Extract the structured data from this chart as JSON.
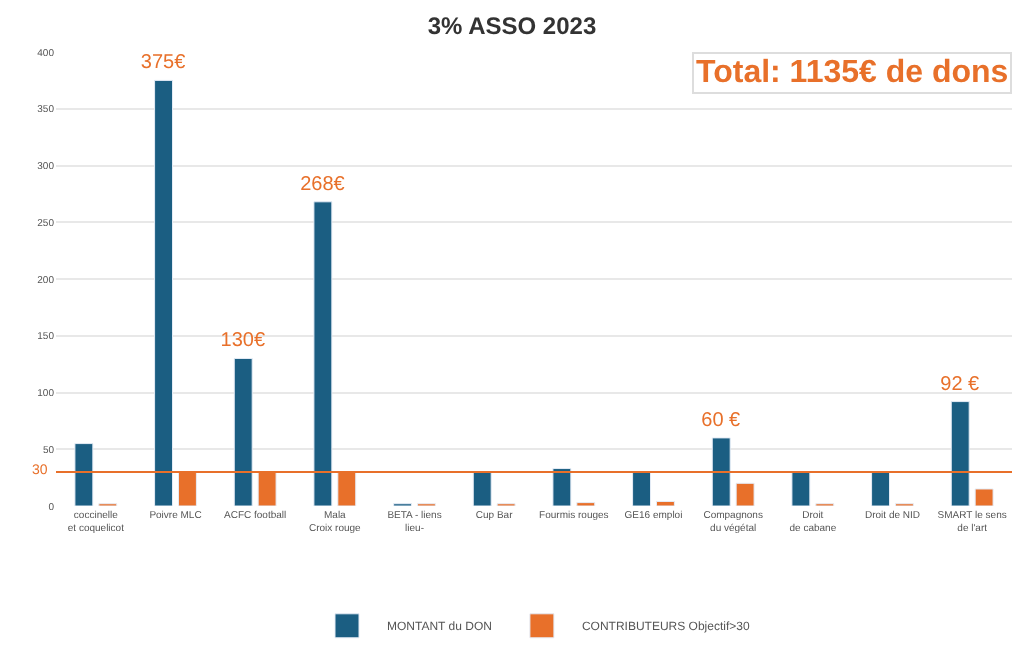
{
  "chart_data": {
    "type": "bar",
    "title": "3% ASSO 2023",
    "categories": [
      "coccinelle et coquelicot",
      "Poivre MLC",
      "ACFC football",
      "Mala Croix rouge",
      "BETA - liens lieu-",
      "Cup Bar",
      "Fourmis rouges",
      "GE16 emploi",
      "Compagnons du végétal",
      "Droit de cabane",
      "Droit de NID",
      "SMART le sens de l'art"
    ],
    "series": [
      {
        "name": "MONTANT du DON",
        "color": "#1b5e82",
        "values": [
          55,
          375,
          130,
          268,
          2,
          30,
          33,
          30,
          60,
          30,
          30,
          92
        ],
        "value_labels": [
          null,
          "375€",
          "130€",
          "268€",
          null,
          null,
          null,
          null,
          "60 €",
          null,
          null,
          "92 €"
        ]
      },
      {
        "name": "CONTRIBUTEURS Objectif>30",
        "color": "#e8702a",
        "values": [
          2,
          30,
          30,
          30,
          2,
          2,
          3,
          4,
          20,
          2,
          2,
          15
        ]
      }
    ],
    "ylim": [
      0,
      400
    ],
    "yticks": [
      0,
      50,
      100,
      150,
      200,
      250,
      300,
      350,
      400
    ],
    "grid": "y",
    "legend": "bottom",
    "ref_lines": [
      {
        "axis": "y",
        "value": 30,
        "label": "30",
        "color": "#e8702a"
      }
    ],
    "annotations": [
      "Total: 1135€ de dons"
    ]
  }
}
